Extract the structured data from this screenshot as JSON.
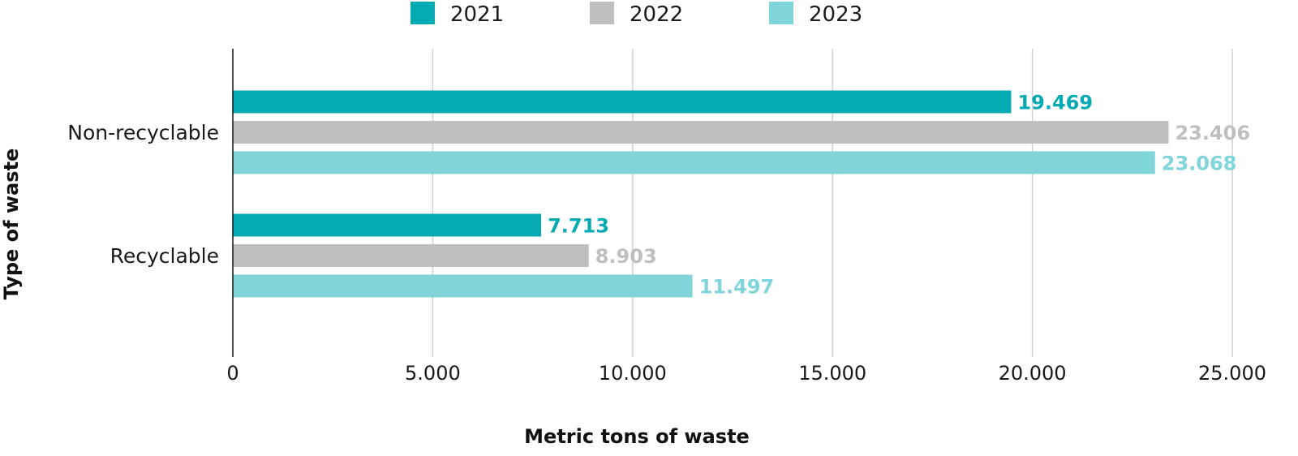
{
  "chart_data": {
    "type": "bar",
    "orientation": "horizontal",
    "categories": [
      "Non-recyclable",
      "Recyclable"
    ],
    "series": [
      {
        "name": "2021",
        "color": "#05aab3",
        "values": [
          19469,
          7713
        ],
        "labels": [
          "19.469",
          "7.713"
        ]
      },
      {
        "name": "2022",
        "color": "#bfbfbf",
        "values": [
          23406,
          8903
        ],
        "labels": [
          "23.406",
          "8.903"
        ]
      },
      {
        "name": "2023",
        "color": "#80d5da",
        "values": [
          23068,
          11497
        ],
        "labels": [
          "23.068",
          "11.497"
        ]
      }
    ],
    "xlabel": "Metric tons of waste",
    "ylabel": "Type of waste",
    "xlim": [
      0,
      25000
    ],
    "x_ticks": [
      0,
      5000,
      10000,
      15000,
      20000,
      25000
    ],
    "x_tick_labels": [
      "0",
      "5.000",
      "10.000",
      "15.000",
      "20.000",
      "25.000"
    ],
    "grid": "vertical",
    "legend_position": "top"
  }
}
